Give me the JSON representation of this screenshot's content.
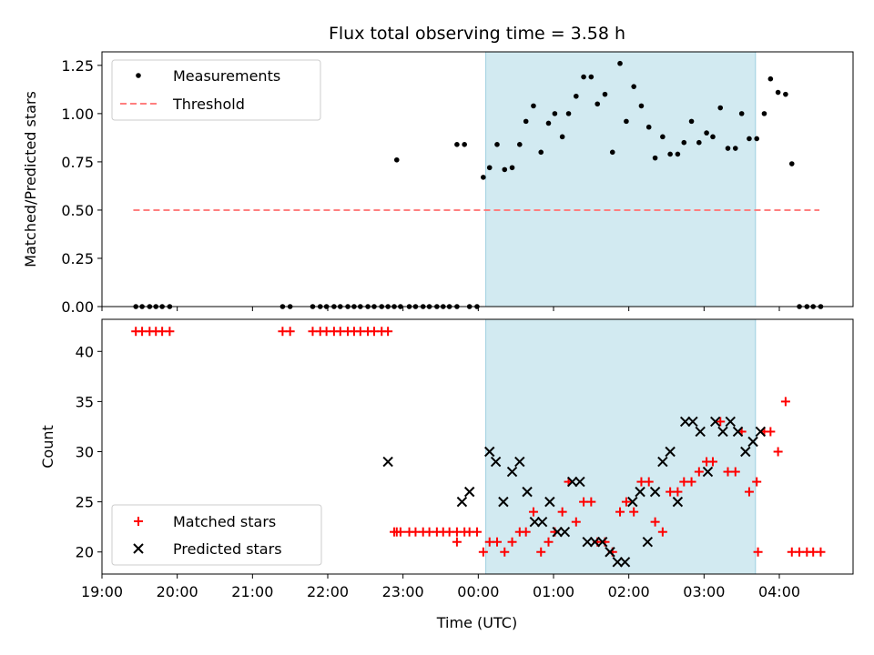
{
  "chart_data": [
    {
      "type": "scatter",
      "title": "Flux total observing time = 3.58 h",
      "xlabel": "",
      "ylabel": "Matched/Predicted stars",
      "ylim": [
        0,
        1.32
      ],
      "y_ticks": [
        0.0,
        0.25,
        0.5,
        0.75,
        1.0,
        1.25
      ],
      "y_tick_labels": [
        "0.00",
        "0.25",
        "0.50",
        "0.75",
        "1.00",
        "1.25"
      ],
      "legend": {
        "placement": "top-left",
        "entries": [
          "Measurements",
          "Threshold"
        ]
      },
      "shaded_interval": [
        "00:06",
        "03:41"
      ],
      "threshold": {
        "name": "Threshold",
        "value": 0.5,
        "x_range": [
          "19:25",
          "04:32"
        ],
        "color": "#ff7f7f"
      },
      "series": [
        {
          "name": "Measurements",
          "color": "#000000",
          "x": [
            "19:27",
            "19:32",
            "19:38",
            "19:43",
            "19:48",
            "19:54",
            "21:24",
            "21:30",
            "21:48",
            "21:54",
            "21:59",
            "22:05",
            "22:10",
            "22:16",
            "22:21",
            "22:26",
            "22:32",
            "22:37",
            "22:43",
            "22:48",
            "22:53",
            "22:58",
            "23:05",
            "23:10",
            "23:16",
            "23:21",
            "23:27",
            "23:32",
            "23:37",
            "23:43",
            "23:53",
            "23:59",
            "00:04",
            "00:09",
            "00:15",
            "00:21",
            "00:27",
            "00:33",
            "00:38",
            "00:44",
            "00:50",
            "00:56",
            "01:01",
            "01:07",
            "01:12",
            "01:18",
            "01:24",
            "01:30",
            "01:35",
            "01:41",
            "01:47",
            "01:53",
            "01:58",
            "02:04",
            "02:10",
            "02:16",
            "02:21",
            "02:27",
            "02:33",
            "02:39",
            "02:44",
            "02:50",
            "02:56",
            "03:02",
            "03:07",
            "03:13",
            "03:19",
            "03:25",
            "03:30",
            "03:36",
            "03:42",
            "03:48",
            "03:53",
            "03:59",
            "04:05",
            "04:10",
            "04:16",
            "04:22",
            "04:27",
            "04:33",
            "23:43",
            "23:49",
            "22:55"
          ],
          "y": [
            0,
            0,
            0,
            0,
            0,
            0,
            0,
            0,
            0,
            0,
            0,
            0,
            0,
            0,
            0,
            0,
            0,
            0,
            0,
            0,
            0,
            0,
            0,
            0,
            0,
            0,
            0,
            0,
            0,
            0,
            0,
            0,
            0.67,
            0.72,
            0.84,
            0.71,
            0.72,
            0.84,
            0.96,
            1.04,
            0.8,
            0.95,
            1.0,
            0.88,
            1.0,
            1.09,
            1.19,
            1.19,
            1.05,
            1.1,
            0.8,
            1.26,
            0.96,
            1.14,
            1.04,
            0.93,
            0.77,
            0.88,
            0.79,
            0.79,
            0.85,
            0.96,
            0.85,
            0.9,
            0.88,
            1.03,
            0.82,
            0.82,
            1.0,
            0.87,
            0.87,
            1.0,
            1.18,
            1.11,
            1.1,
            0.74,
            0,
            0,
            0,
            0,
            0.84,
            0.84,
            0.76
          ]
        }
      ]
    },
    {
      "type": "scatter",
      "title": "",
      "xlabel": "Time (UTC)",
      "ylabel": "Count",
      "ylim": [
        17.8,
        43.2
      ],
      "y_ticks": [
        20,
        25,
        30,
        35,
        40
      ],
      "x_ticks": [
        "19:00",
        "20:00",
        "21:00",
        "22:00",
        "23:00",
        "00:00",
        "01:00",
        "02:00",
        "03:00",
        "04:00"
      ],
      "legend": {
        "placement": "bottom-left",
        "entries": [
          "Matched stars",
          "Predicted stars"
        ]
      },
      "shaded_interval": [
        "00:06",
        "03:41"
      ],
      "series": [
        {
          "name": "Matched stars",
          "color": "#ff0000",
          "x": [
            "19:27",
            "19:32",
            "19:38",
            "19:43",
            "19:48",
            "19:54",
            "21:24",
            "21:30",
            "21:48",
            "21:54",
            "21:59",
            "22:05",
            "22:10",
            "22:16",
            "22:21",
            "22:26",
            "22:32",
            "22:37",
            "22:43",
            "22:48",
            "22:53",
            "22:58",
            "23:05",
            "23:10",
            "23:16",
            "23:21",
            "23:27",
            "23:32",
            "23:37",
            "23:43",
            "23:53",
            "23:59",
            "00:04",
            "00:09",
            "00:15",
            "00:21",
            "00:27",
            "00:33",
            "00:38",
            "00:44",
            "00:50",
            "00:56",
            "01:01",
            "01:07",
            "01:12",
            "01:18",
            "01:24",
            "01:30",
            "01:35",
            "01:41",
            "01:47",
            "01:53",
            "01:58",
            "02:04",
            "02:10",
            "02:16",
            "02:21",
            "02:27",
            "02:33",
            "02:39",
            "02:44",
            "02:50",
            "02:56",
            "03:02",
            "03:07",
            "03:13",
            "03:19",
            "03:25",
            "03:30",
            "03:36",
            "03:42",
            "03:48",
            "03:53",
            "03:59",
            "04:05",
            "04:10",
            "04:16",
            "04:22",
            "04:27",
            "04:33",
            "23:43",
            "23:49",
            "22:55",
            "03:43"
          ],
          "y": [
            42,
            42,
            42,
            42,
            42,
            42,
            42,
            42,
            42,
            42,
            42,
            42,
            42,
            42,
            42,
            42,
            42,
            42,
            42,
            42,
            22,
            22,
            22,
            22,
            22,
            22,
            22,
            22,
            22,
            22,
            22,
            22,
            20,
            21,
            21,
            20,
            21,
            22,
            22,
            24,
            20,
            21,
            22,
            24,
            27,
            23,
            25,
            25,
            21,
            21,
            20,
            24,
            25,
            24,
            27,
            27,
            23,
            22,
            26,
            26,
            27,
            27,
            28,
            29,
            29,
            33,
            28,
            28,
            32,
            26,
            27,
            32,
            32,
            30,
            35,
            20,
            20,
            20,
            20,
            20,
            21,
            22,
            22,
            20
          ],
          "note": ""
        },
        {
          "name": "Predicted stars",
          "color": "#000000",
          "x": [
            "22:48",
            "23:47",
            "23:53",
            "00:09",
            "00:14",
            "00:20",
            "00:27",
            "00:33",
            "00:39",
            "00:45",
            "00:51",
            "00:57",
            "01:03",
            "01:09",
            "01:15",
            "01:21",
            "01:27",
            "01:33",
            "01:39",
            "01:45",
            "01:51",
            "01:57",
            "02:03",
            "02:09",
            "02:15",
            "02:21",
            "02:27",
            "02:33",
            "02:39",
            "02:45",
            "02:51",
            "02:57",
            "03:03",
            "03:09",
            "03:15",
            "03:21",
            "03:27",
            "03:33",
            "03:39",
            "03:45"
          ],
          "y": [
            29,
            25,
            26,
            30,
            29,
            25,
            28,
            29,
            26,
            23,
            23,
            25,
            22,
            22,
            27,
            27,
            21,
            21,
            21,
            20,
            19,
            19,
            25,
            26,
            21,
            26,
            29,
            30,
            25,
            33,
            33,
            32,
            28,
            33,
            32,
            33,
            32,
            30,
            31,
            32
          ]
        }
      ]
    }
  ]
}
